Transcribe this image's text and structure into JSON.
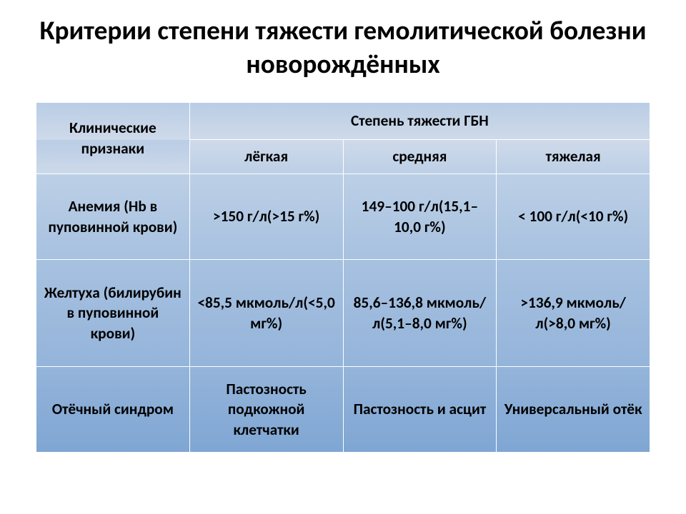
{
  "title": {
    "text": "Критерии степени тяжести гемолитической болезни новорождённых",
    "fontsize_pt": 28,
    "color": "#000000"
  },
  "table": {
    "border_color": "#ffffff",
    "text_color": "#000000",
    "header_row_bg": "#b9cde5",
    "header_fontsize_pt": 16,
    "body_fontsize_pt": 16,
    "col_widths_pct": [
      25,
      25,
      25,
      25
    ],
    "row_gradients": [
      {
        "from": "#cfdaea",
        "to": "#bccfe6"
      },
      {
        "from": "#bccfe6",
        "to": "#a7c1e0"
      },
      {
        "from": "#a7c1e0",
        "to": "#94b4da"
      },
      {
        "from": "#94b4da",
        "to": "#7fa6d3"
      }
    ],
    "header": {
      "clinical_label": "Клинические признаки",
      "severity_group_label": "Степень тяжести ГБН",
      "severity_labels": [
        "лёгкая",
        "средняя",
        "тяжелая"
      ]
    },
    "rows": [
      {
        "clinical": "Анемия (Hb в пуповинной крови)",
        "cells": [
          ">150 г/л(>15 г%)",
          "149–100 г/л(15,1–10,0 г%)",
          "< 100 г/л(<10 г%)"
        ]
      },
      {
        "clinical": "Желтуха (билирубин в пуповинной крови)",
        "cells": [
          "<85,5 мкмоль/л(<5,0 мг%)",
          "85,6–136,8 мкмоль/л(5,1–8,0 мг%)",
          ">136,9 мкмоль/л(>8,0 мг%)"
        ]
      },
      {
        "clinical": "Отёчный синдром",
        "cells": [
          "Пастозность подкожной клетчатки",
          "Пастозность и асцит",
          "Универсальный отёк"
        ]
      }
    ]
  }
}
